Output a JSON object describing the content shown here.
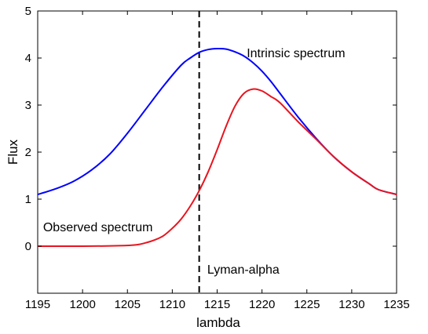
{
  "chart_data": {
    "type": "line",
    "title": "",
    "xlabel": "lambda",
    "ylabel": "Flux",
    "xlim": [
      1195,
      1235
    ],
    "ylim": [
      -1,
      5
    ],
    "xticks": [
      1195,
      1200,
      1205,
      1210,
      1215,
      1220,
      1225,
      1230,
      1235
    ],
    "yticks": [
      0,
      1,
      2,
      3,
      4,
      5
    ],
    "grid": false,
    "legend": "none",
    "series": [
      {
        "name": "Intrinsic spectrum",
        "color": "#0000ff",
        "x": [
          1195,
          1197,
          1199,
          1201,
          1203,
          1205,
          1207,
          1209,
          1211,
          1212,
          1213,
          1214,
          1215,
          1216,
          1217,
          1218,
          1219,
          1220,
          1221,
          1222,
          1224,
          1226,
          1228,
          1230,
          1232,
          1233,
          1235
        ],
        "y": [
          1.1,
          1.22,
          1.38,
          1.62,
          1.95,
          2.4,
          2.9,
          3.4,
          3.85,
          4.0,
          4.12,
          4.18,
          4.2,
          4.19,
          4.13,
          4.04,
          3.9,
          3.72,
          3.5,
          3.25,
          2.75,
          2.3,
          1.9,
          1.58,
          1.32,
          1.2,
          1.1
        ]
      },
      {
        "name": "Observed spectrum",
        "color": "#e8141e",
        "x": [
          1195,
          1200,
          1204,
          1206,
          1207,
          1208,
          1209,
          1210,
          1211,
          1212,
          1213,
          1214,
          1215,
          1216,
          1217,
          1218,
          1219,
          1220,
          1221,
          1222,
          1224,
          1226,
          1228,
          1230,
          1232,
          1233,
          1235
        ],
        "y": [
          0.0,
          0.0,
          0.01,
          0.03,
          0.07,
          0.13,
          0.22,
          0.38,
          0.58,
          0.85,
          1.18,
          1.58,
          2.05,
          2.55,
          2.98,
          3.25,
          3.34,
          3.3,
          3.18,
          3.05,
          2.65,
          2.28,
          1.9,
          1.58,
          1.32,
          1.2,
          1.1
        ]
      }
    ],
    "vline": {
      "x": 1213,
      "color": "#000000",
      "style": "dashed"
    },
    "annotations": {
      "intrinsic_label": {
        "text": "Intrinsic spectrum",
        "x": 1218.3,
        "y": 4.02
      },
      "observed_label": {
        "text": "Observed spectrum",
        "x": 1195.6,
        "y": 0.32
      },
      "lyman_label": {
        "text": "Lyman-alpha",
        "x": 1213.9,
        "y": -0.58
      }
    }
  }
}
